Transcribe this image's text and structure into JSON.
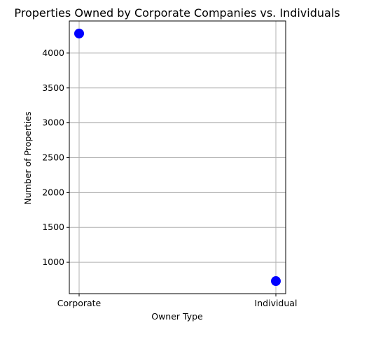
{
  "chart_data": {
    "type": "scatter",
    "title": "Properties Owned by Corporate Companies vs. Individuals",
    "xlabel": "Owner Type",
    "ylabel": "Number of Properties",
    "categories": [
      "Corporate",
      "Individual"
    ],
    "values": [
      4280,
      730
    ],
    "ylim": [
      550,
      4460
    ],
    "yticks": [
      1000,
      1500,
      2000,
      2500,
      3000,
      3500,
      4000
    ],
    "grid": true,
    "marker_color": "#0000ff"
  }
}
